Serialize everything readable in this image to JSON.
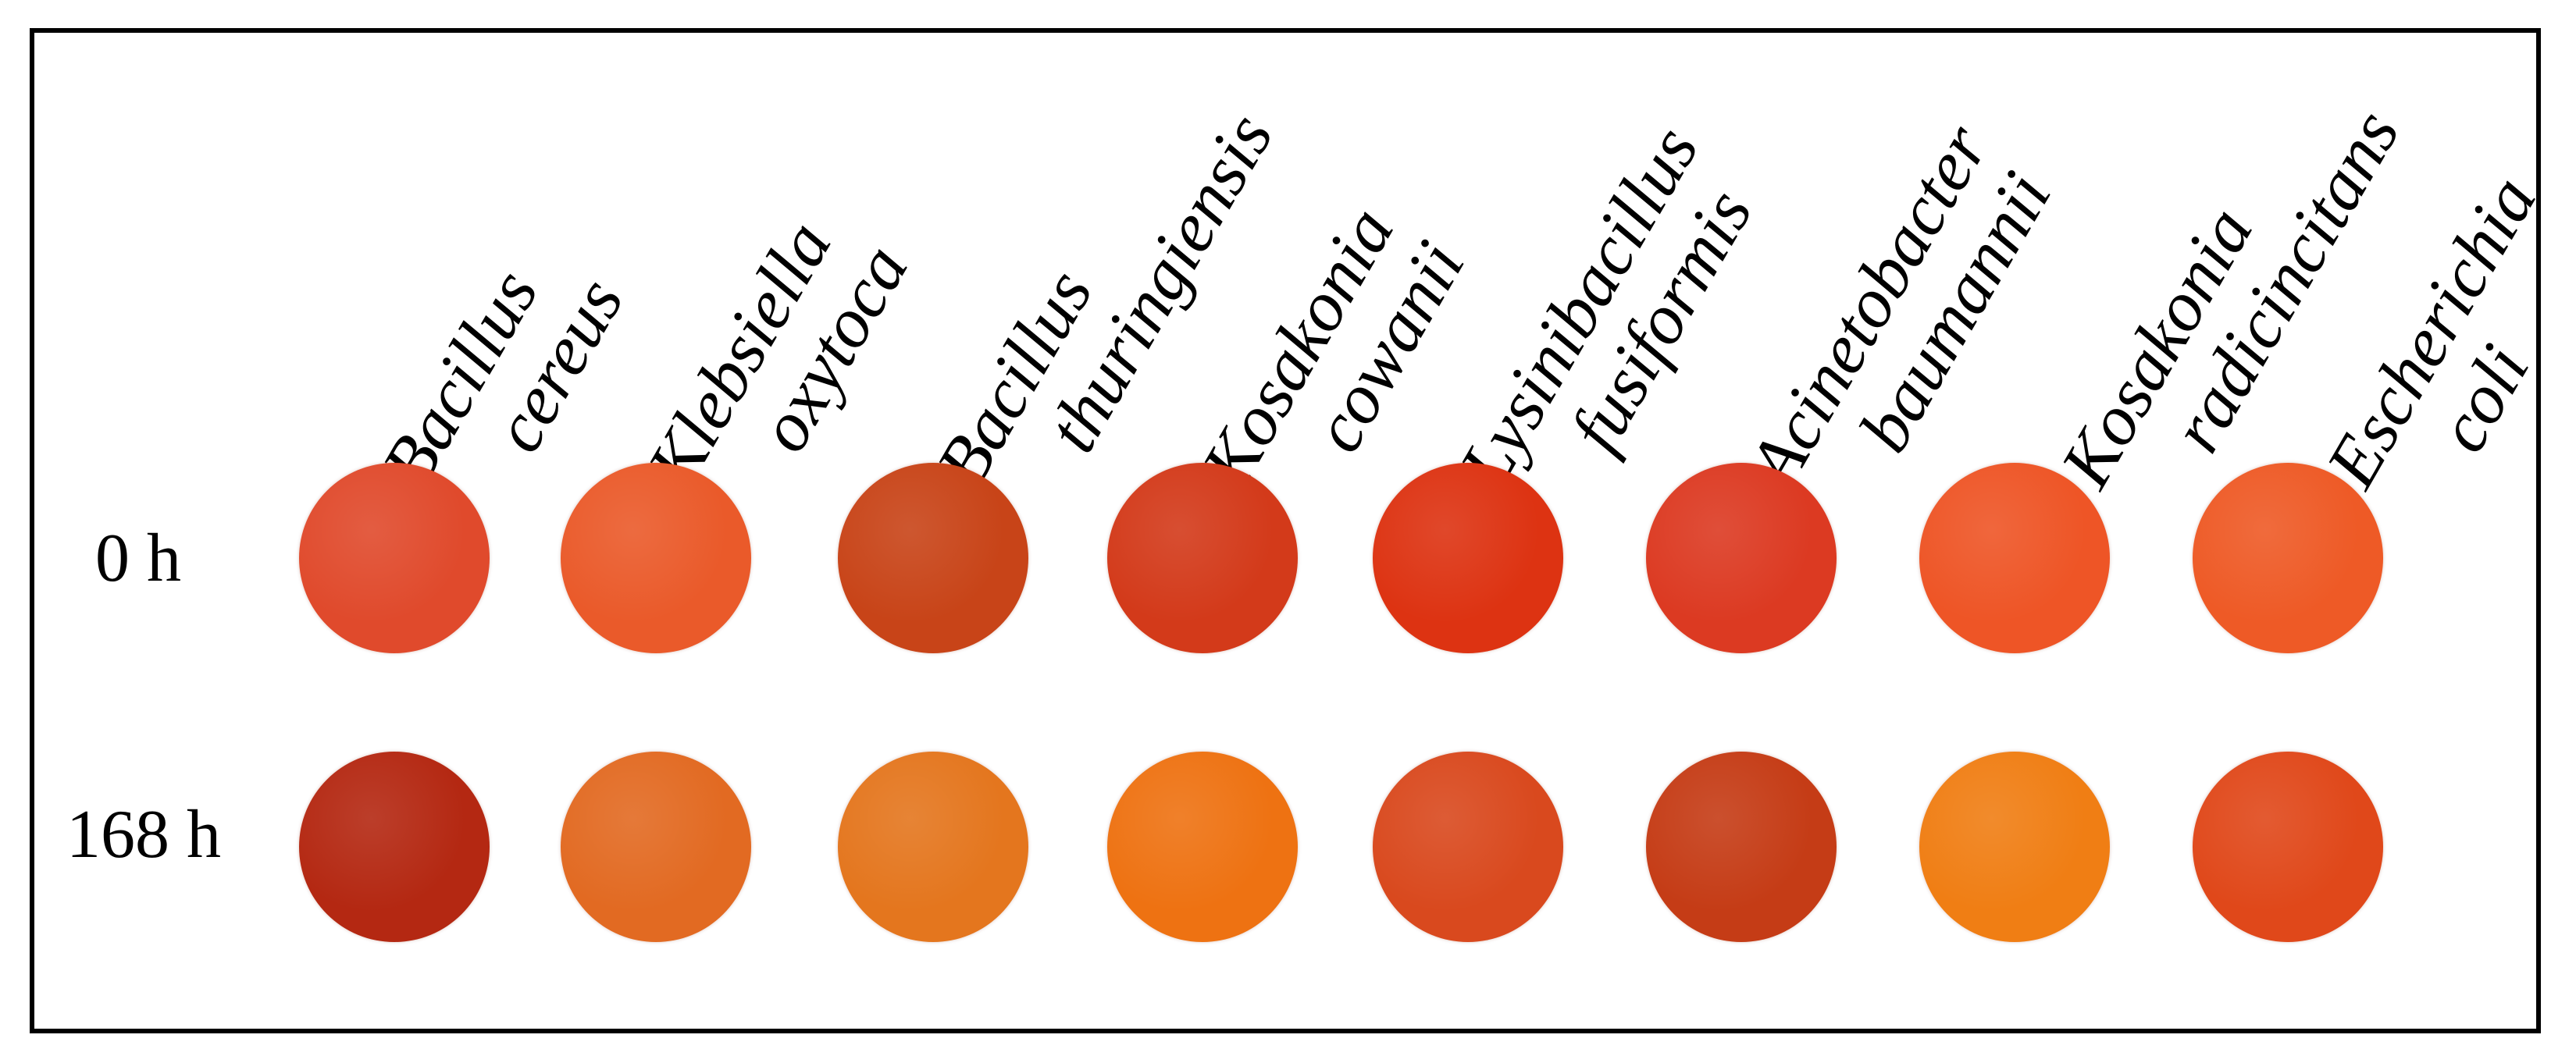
{
  "organisms": [
    {
      "line1": "Bacillus",
      "line2": "cereus"
    },
    {
      "line1": "Klebsiella",
      "line2": "oxytoca"
    },
    {
      "line1": "Bacillus",
      "line2": "thuringiensis"
    },
    {
      "line1": "Kosakonia",
      "line2": "cowanii"
    },
    {
      "line1": "Lysinibacillus",
      "line2": "fusiformis"
    },
    {
      "line1": "Acinetobacter",
      "line2": "baumannii"
    },
    {
      "line1": "Kosakonia",
      "line2": "radicincitans"
    },
    {
      "line1": "Escherichia",
      "line2": "coli"
    }
  ],
  "rows": [
    {
      "label": "0 h",
      "colors": [
        "#e04a2c",
        "#ea5a2a",
        "#c84418",
        "#d33a1a",
        "#dd3312",
        "#dc3a22",
        "#ee5526",
        "#ee5a26"
      ]
    },
    {
      "label": "168 h",
      "colors": [
        "#b42812",
        "#e26a22",
        "#e4761e",
        "#ee7212",
        "#d9491e",
        "#c53c16",
        "#f07e14",
        "#e0481a"
      ]
    }
  ]
}
